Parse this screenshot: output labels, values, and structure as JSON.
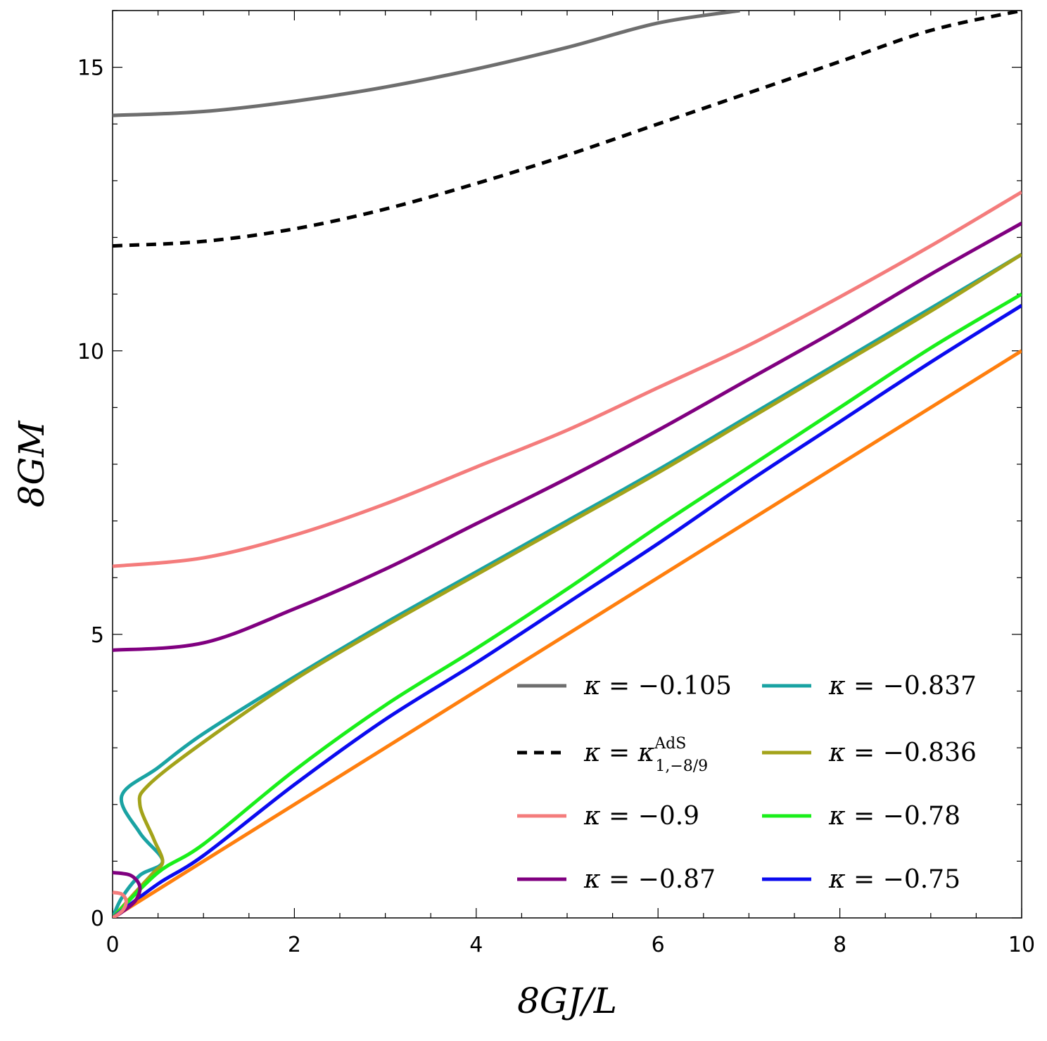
{
  "chart_data": {
    "type": "line",
    "title": "",
    "xlabel": "8GJ/L",
    "ylabel": "8GM",
    "xlim": [
      0,
      10
    ],
    "ylim": [
      0,
      16
    ],
    "xticks": [
      "0",
      "2",
      "4",
      "6",
      "8",
      "10"
    ],
    "yticks": [
      "0",
      "5",
      "10",
      "15"
    ],
    "grid": false,
    "legend_position": "bottom-right",
    "series": [
      {
        "name": "κ = −0.105",
        "label_prefix": "κ = ",
        "label_value": "−0.105",
        "color": "#6e6e6e",
        "dash": false,
        "x": [
          0,
          1,
          2,
          3,
          4,
          5,
          6,
          6.9
        ],
        "y": [
          14.15,
          14.22,
          14.4,
          14.65,
          14.97,
          15.35,
          15.78,
          16.0
        ]
      },
      {
        "name": "κ = κ^AdS_{1,−8/9}",
        "label_prefix": "κ = κ",
        "label_sup": "AdS",
        "label_sub": "1,−8/9",
        "color": "#000000",
        "dash": true,
        "x": [
          0,
          1,
          2,
          3,
          4,
          5,
          6,
          7,
          8,
          9,
          10
        ],
        "y": [
          11.85,
          11.93,
          12.15,
          12.5,
          12.95,
          13.45,
          14.0,
          14.55,
          15.1,
          15.65,
          16.0
        ]
      },
      {
        "name": "κ = −0.9",
        "label_prefix": "κ = ",
        "label_value": "−0.9",
        "color": "#f47c7c",
        "dash": false,
        "x": [
          0,
          1,
          2,
          3,
          4,
          5,
          6,
          7,
          8,
          9,
          10
        ],
        "y": [
          6.2,
          6.35,
          6.75,
          7.3,
          7.95,
          8.6,
          9.35,
          10.1,
          10.95,
          11.85,
          12.8
        ]
      },
      {
        "name": "κ = −0.87",
        "label_prefix": "κ = ",
        "label_value": "−0.87",
        "color": "#800080",
        "dash": false,
        "x": [
          0,
          1,
          2,
          3,
          4,
          5,
          6,
          7,
          8,
          9,
          10
        ],
        "y": [
          4.72,
          4.85,
          5.45,
          6.15,
          6.95,
          7.75,
          8.6,
          9.5,
          10.4,
          11.35,
          12.25
        ]
      },
      {
        "name": "κ = −0.837",
        "label_prefix": "κ = ",
        "label_value": "−0.837",
        "color": "#1aa3a3",
        "dash": false,
        "x": [
          0,
          0.1,
          0.3,
          0.55,
          0.3,
          0.1,
          0.5,
          1,
          2,
          3,
          4,
          5,
          6,
          7,
          8,
          9,
          10
        ],
        "y": [
          0,
          0.35,
          0.75,
          1.0,
          1.5,
          2.15,
          2.65,
          3.25,
          4.25,
          5.2,
          6.1,
          7.0,
          7.9,
          8.85,
          9.8,
          10.75,
          11.7
        ]
      },
      {
        "name": "κ = −0.836",
        "label_prefix": "κ = ",
        "label_value": "−0.836",
        "color": "#a3a31a",
        "dash": false,
        "x": [
          0,
          0.25,
          0.45,
          0.55,
          0.45,
          0.3,
          0.4,
          1,
          2,
          3,
          4,
          5,
          6,
          7,
          8,
          9,
          10
        ],
        "y": [
          0,
          0.45,
          0.8,
          1.0,
          1.4,
          2.0,
          2.35,
          3.1,
          4.2,
          5.15,
          6.05,
          6.95,
          7.85,
          8.8,
          9.75,
          10.7,
          11.7
        ]
      },
      {
        "name": "κ = −0.78",
        "label_prefix": "κ = ",
        "label_value": "−0.78",
        "color": "#1aef1a",
        "dash": false,
        "x": [
          0,
          0.5,
          1,
          2,
          3,
          4,
          5,
          6,
          7,
          8,
          9,
          10
        ],
        "y": [
          0,
          0.8,
          1.3,
          2.6,
          3.75,
          4.75,
          5.8,
          6.9,
          7.95,
          9.0,
          10.05,
          11.0
        ]
      },
      {
        "name": "κ = −0.75",
        "label_prefix": "κ = ",
        "label_value": "−0.75",
        "color": "#0b0bef",
        "dash": false,
        "x": [
          0,
          0.5,
          1,
          2,
          3,
          4,
          5,
          6,
          7,
          8,
          9,
          10
        ],
        "y": [
          0,
          0.6,
          1.1,
          2.35,
          3.5,
          4.5,
          5.55,
          6.6,
          7.7,
          8.75,
          9.8,
          10.8
        ]
      },
      {
        "name": "orange",
        "color": "#ff7f0e",
        "dash": false,
        "in_legend": false,
        "x": [
          0,
          10
        ],
        "y": [
          0,
          10
        ]
      },
      {
        "name": "purple-small",
        "color": "#800080",
        "dash": false,
        "in_legend": false,
        "x": [
          0,
          0.2,
          0.3,
          0.25,
          0.1,
          0
        ],
        "y": [
          0.8,
          0.75,
          0.55,
          0.3,
          0.1,
          0
        ]
      },
      {
        "name": "pink-small",
        "color": "#f47c7c",
        "dash": false,
        "in_legend": false,
        "x": [
          0,
          0.1,
          0.15,
          0.12,
          0.05,
          0
        ],
        "y": [
          0.45,
          0.42,
          0.3,
          0.15,
          0.05,
          0
        ]
      }
    ]
  }
}
